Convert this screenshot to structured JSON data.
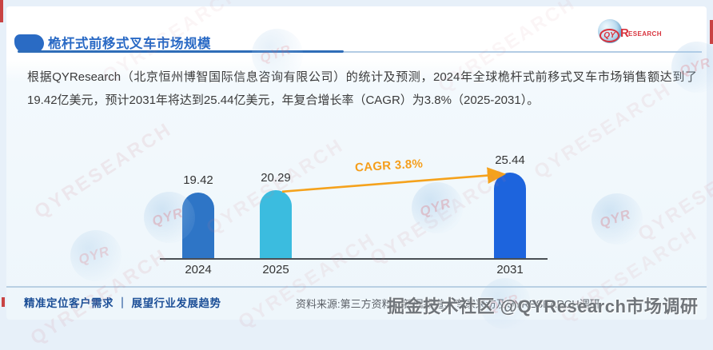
{
  "page": {
    "watermark_text": "QYRESEARCH",
    "watermark_overlay": "掘金技术社区 @QYResearch市场调研"
  },
  "header": {
    "title": "桅杆式前移式叉车市场规模",
    "logo": {
      "qy": "QY",
      "r": "R",
      "esearch": "ESEARCH"
    }
  },
  "body": {
    "paragraph": "根据QYResearch（北京恒州博智国际信息咨询有限公司）的统计及预测，2024年全球桅杆式前移式叉车市场销售额达到了19.42亿美元，预计2031年将达到25.44亿美元，年复合增长率（CAGR）为3.8%（2025-2031）。"
  },
  "chart_data": {
    "type": "bar",
    "categories": [
      "2024",
      "2025",
      "2031"
    ],
    "values": [
      19.42,
      20.29,
      25.44
    ],
    "value_labels": [
      "19.42",
      "20.29",
      "25.44"
    ],
    "bar_colors": [
      "#2e75c6",
      "#3bbcdf",
      "#1d64dd"
    ],
    "annotation": "CAGR 3.8%",
    "annotation_color": "#f59e1b",
    "unit": "亿美元",
    "title": "",
    "xlabel": "",
    "ylabel": "",
    "ylim": [
      0,
      26
    ],
    "grid": false,
    "legend": "none"
  },
  "footer": {
    "tagline": "精准定位客户需求 ｜ 展望行业发展趋势",
    "source": "资料来源:第三方资料、新闻报道、专家采访及QYRESEARCH调研"
  }
}
